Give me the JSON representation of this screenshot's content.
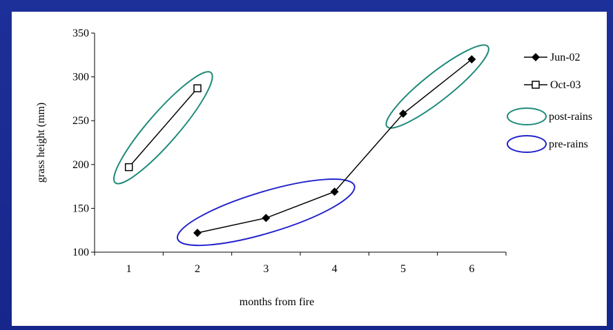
{
  "colors": {
    "slide_background": "#1a2a8c",
    "panel_background": "#ffffff",
    "post_rains_outline": "#1f8a7a",
    "pre_rains_outline": "#2222cc",
    "series_line": "#000000"
  },
  "chart_data": {
    "type": "line",
    "title": "",
    "xlabel": "months from fire",
    "ylabel": "grass height (mm)",
    "xlim": [
      0.5,
      6.5
    ],
    "ylim": [
      100,
      350
    ],
    "x_ticks": [
      1,
      2,
      3,
      4,
      5,
      6
    ],
    "y_ticks": [
      100,
      150,
      200,
      250,
      300,
      350
    ],
    "grid": false,
    "legend_position": "right",
    "series": [
      {
        "name": "Jun-02",
        "marker": "filled-diamond",
        "x": [
          2,
          3,
          4,
          5,
          6
        ],
        "values": [
          122,
          139,
          169,
          258,
          320
        ]
      },
      {
        "name": "Oct-03",
        "marker": "open-square",
        "x": [
          1,
          2
        ],
        "values": [
          197,
          287
        ]
      }
    ],
    "annotations": [
      {
        "label": "post-rains",
        "shape": "ellipse",
        "color": "#1f8a7a",
        "encloses": "Oct-03 months 1–2; Jun-02 months 5–6"
      },
      {
        "label": "pre-rains",
        "shape": "ellipse",
        "color": "#2222cc",
        "encloses": "Jun-02 months 2–4"
      }
    ]
  }
}
